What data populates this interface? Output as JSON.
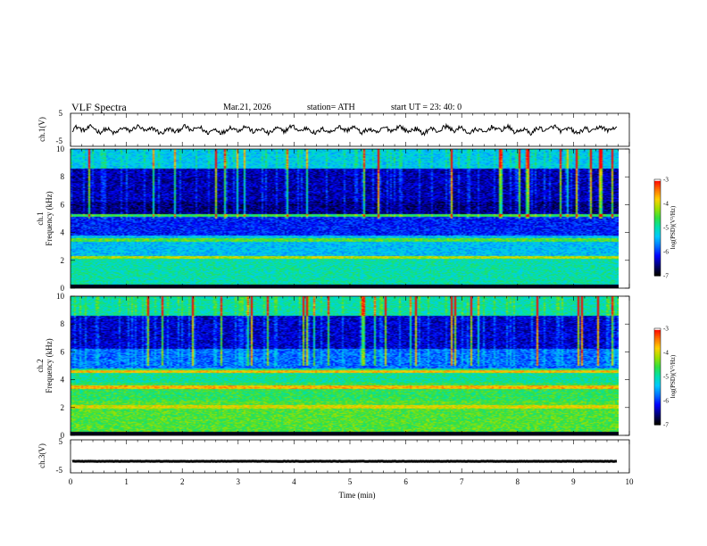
{
  "header": {
    "title": "VLF  Spectra",
    "date": "Mar.21, 2026",
    "station": "station= ATH",
    "start": "start  UT  =    23: 40: 0"
  },
  "colors": {
    "colormap": [
      "#000000",
      "#00007a",
      "#0000ff",
      "#0070ff",
      "#00c8ff",
      "#00e0b0",
      "#30e040",
      "#a0e000",
      "#ffd000",
      "#ff7000",
      "#ff0000",
      "#ffffff"
    ],
    "trace": "#000000"
  },
  "chart_data": [
    {
      "type": "line",
      "ylabel": "ch.1(V)",
      "ylim": [
        -5,
        5
      ],
      "yticks": [
        "5",
        "-5"
      ],
      "xlim": [
        0,
        10
      ],
      "description_values": {
        "mean": 0,
        "amplitude_approx": 1.5
      }
    },
    {
      "type": "heatmap",
      "ylabel_top": "ch.1",
      "ylabel": "Frequency  (kHz)",
      "ylim": [
        0,
        10
      ],
      "yticks": [
        "0",
        "2",
        "4",
        "6",
        "8",
        "10"
      ],
      "xlim": [
        0,
        10
      ],
      "colorbar": {
        "label": "log(PSD)(V²/Hz)",
        "range": [
          -7,
          -3
        ],
        "ticks": [
          "-3",
          "-4",
          "-5",
          "-6",
          "-7"
        ]
      }
    },
    {
      "type": "heatmap",
      "ylabel_top": "ch.2",
      "ylabel": "Frequency  (kHz)",
      "ylim": [
        0,
        10
      ],
      "yticks": [
        "0",
        "2",
        "4",
        "6",
        "8",
        "10"
      ],
      "xlim": [
        0,
        10
      ],
      "colorbar": {
        "label": "log(PSD)(V²/Hz)",
        "range": [
          -7,
          -3
        ],
        "ticks": [
          "-3",
          "-4",
          "-5",
          "-6",
          "-7"
        ]
      }
    },
    {
      "type": "line",
      "ylabel": "ch.3(V)",
      "ylim": [
        -5,
        5
      ],
      "yticks": [
        "5",
        "-5"
      ],
      "xlim": [
        0,
        10
      ],
      "xlabel": "Time  (min)",
      "xticks": [
        "0",
        "1",
        "2",
        "3",
        "4",
        "5",
        "6",
        "7",
        "8",
        "9",
        "10"
      ],
      "description_values": {
        "mean": -1.5,
        "amplitude_approx": 0.1
      }
    }
  ]
}
